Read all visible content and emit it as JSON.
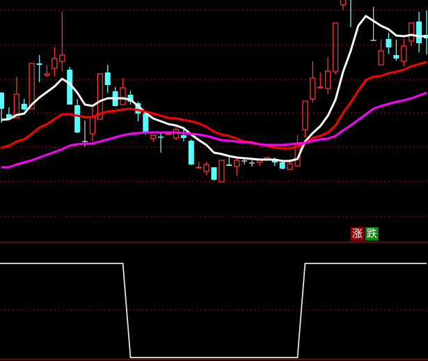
{
  "chart_data": [
    {
      "type": "candlestick",
      "title": "",
      "grid": true,
      "grid_levels": [
        38.5,
        33.6,
        28.6,
        23.8,
        18.9,
        14.0,
        9.0
      ],
      "ylim": [
        9.0,
        40.0
      ],
      "colors": {
        "up": "#ff3232",
        "down": "#54ffff",
        "flat": "#c8c8c8",
        "grid": "#c80000",
        "background": "#000000"
      },
      "candles_ohlc": [
        [
          26.7,
          26.8,
          22.4,
          24.4
        ],
        [
          23.6,
          24.6,
          22.8,
          23.0
        ],
        [
          23.1,
          29.0,
          23.0,
          26.5
        ],
        [
          25.1,
          25.8,
          24.2,
          24.3
        ],
        [
          24.4,
          30.9,
          24.4,
          30.9
        ],
        [
          30.9,
          32.1,
          28.2,
          30.7
        ],
        [
          29.2,
          30.7,
          29.0,
          29.4
        ],
        [
          30.2,
          33.2,
          29.1,
          31.6
        ],
        [
          31.2,
          38.3,
          29.8,
          32.1
        ],
        [
          30.0,
          30.4,
          25.0,
          25.0
        ],
        [
          24.9,
          25.8,
          20.9,
          21.0
        ],
        [
          19.7,
          22.7,
          19.0,
          19.7
        ],
        [
          20.8,
          24.6,
          19.7,
          23.2
        ],
        [
          22.9,
          29.4,
          22.9,
          29.4
        ],
        [
          29.6,
          30.7,
          26.7,
          27.8
        ],
        [
          26.9,
          27.5,
          24.7,
          24.8
        ],
        [
          25.0,
          28.8,
          25.0,
          27.4
        ],
        [
          26.4,
          27.0,
          25.0,
          25.4
        ],
        [
          25.2,
          25.4,
          22.6,
          23.7
        ],
        [
          23.7,
          24.0,
          20.7,
          21.0
        ],
        [
          20.1,
          20.6,
          19.7,
          20.6
        ],
        [
          20.4,
          21.0,
          18.1,
          20.3
        ],
        [
          20.7,
          20.9,
          20.6,
          20.8
        ],
        [
          20.2,
          22.1,
          19.9,
          21.4
        ],
        [
          20.6,
          21.6,
          19.7,
          20.2
        ],
        [
          19.8,
          20.0,
          16.3,
          16.4
        ],
        [
          15.9,
          16.8,
          15.9,
          16.0
        ],
        [
          15.4,
          16.8,
          14.9,
          16.4
        ],
        [
          16.0,
          16.0,
          14.1,
          14.2
        ],
        [
          13.9,
          17.0,
          13.9,
          17.0
        ],
        [
          16.4,
          17.4,
          16.2,
          16.2
        ],
        [
          16.1,
          17.4,
          14.8,
          17.0
        ],
        [
          16.9,
          17.3,
          16.4,
          16.9
        ],
        [
          16.6,
          17.0,
          16.1,
          16.6
        ],
        [
          16.7,
          17.1,
          16.2,
          17.0
        ],
        [
          17.2,
          17.5,
          17.1,
          17.4
        ],
        [
          17.2,
          17.4,
          16.2,
          16.7
        ],
        [
          16.7,
          16.8,
          15.7,
          15.8
        ],
        [
          15.7,
          17.2,
          15.7,
          16.5
        ],
        [
          16.2,
          20.6,
          16.2,
          19.5
        ],
        [
          21.4,
          25.5,
          20.3,
          25.5
        ],
        [
          25.8,
          31.2,
          25.3,
          28.8
        ],
        [
          27.4,
          29.6,
          27.4,
          27.5
        ],
        [
          27.3,
          31.8,
          26.5,
          29.8
        ],
        [
          29.7,
          36.7,
          29.3,
          36.7
        ],
        [
          39.3,
          41.5,
          38.6,
          40.5
        ],
        [
          42.0,
          43.0,
          36.1,
          40.5
        ],
        [
          46.0,
          48.0,
          41.0,
          44.0
        ],
        [
          44.0,
          47.0,
          40.5,
          42.0
        ],
        [
          34.2,
          39.0,
          34.2,
          34.2
        ],
        [
          30.7,
          34.3,
          30.7,
          32.7
        ],
        [
          34.4,
          35.3,
          32.3,
          33.2
        ],
        [
          32.1,
          34.3,
          31.3,
          31.6
        ],
        [
          31.2,
          34.4,
          30.5,
          33.4
        ],
        [
          34.1,
          36.7,
          33.4,
          36.7
        ],
        [
          36.9,
          38.3,
          32.5,
          33.8
        ],
        [
          35.0,
          38.5,
          32.2,
          34.5
        ]
      ],
      "series": [
        {
          "color": "#ffffff",
          "values": [
            22.8,
            22.9,
            23.5,
            23.7,
            25.0,
            26.0,
            26.8,
            27.6,
            28.7,
            28.0,
            26.7,
            25.0,
            24.8,
            25.5,
            25.9,
            25.9,
            25.9,
            25.7,
            24.8,
            23.8,
            23.0,
            22.6,
            22.2,
            22.0,
            21.6,
            20.7,
            19.9,
            19.2,
            18.1,
            17.9,
            17.6,
            17.4,
            17.3,
            17.2,
            17.1,
            17.1,
            17.1,
            16.9,
            16.9,
            17.2,
            19.7,
            20.9,
            21.9,
            23.4,
            25.7,
            29.7,
            32.7,
            36.3,
            37.7,
            37.0,
            36.3,
            35.8,
            34.9,
            34.8,
            35.0,
            34.8,
            34.8
          ]
        },
        {
          "color": "#ff0000",
          "values": [
            18.8,
            19.1,
            19.7,
            20.0,
            20.8,
            21.7,
            22.2,
            22.9,
            23.6,
            23.6,
            23.4,
            23.2,
            23.2,
            23.7,
            24.0,
            24.1,
            24.3,
            24.4,
            24.2,
            24.0,
            23.7,
            23.4,
            23.1,
            23.0,
            22.8,
            22.6,
            22.3,
            21.8,
            21.1,
            20.7,
            20.5,
            20.1,
            19.7,
            19.6,
            19.3,
            19.1,
            18.8,
            18.7,
            18.7,
            19.0,
            19.5,
            20.2,
            20.5,
            21.0,
            22.0,
            23.8,
            25.3,
            27.0,
            28.5,
            29.0,
            29.1,
            29.5,
            29.7,
            30.0,
            30.5,
            30.8,
            31.1
          ]
        },
        {
          "color": "#ff00ff",
          "values": [
            16.0,
            16.0,
            16.4,
            16.7,
            17.0,
            17.4,
            17.8,
            18.2,
            18.6,
            19.1,
            19.3,
            19.4,
            19.4,
            19.7,
            20.0,
            20.3,
            20.6,
            20.8,
            20.9,
            21.0,
            21.0,
            21.0,
            21.0,
            21.0,
            20.9,
            20.8,
            20.7,
            20.5,
            20.2,
            19.9,
            19.8,
            19.7,
            19.6,
            19.5,
            19.3,
            19.2,
            19.2,
            19.2,
            19.3,
            19.4,
            19.5,
            19.8,
            20.0,
            20.1,
            20.5,
            21.3,
            22.0,
            22.8,
            23.6,
            24.4,
            24.8,
            25.1,
            25.4,
            25.6,
            25.9,
            26.3,
            26.7
          ]
        }
      ]
    },
    {
      "type": "line",
      "title": "",
      "ylim": [
        0,
        1
      ],
      "grid_levels": [
        0.5
      ],
      "series": [
        {
          "color": "#e6e6e6",
          "values": [
            1,
            1,
            1,
            1,
            1,
            1,
            1,
            1,
            1,
            1,
            1,
            1,
            1,
            1,
            1,
            1,
            1,
            0,
            0,
            0,
            0,
            0,
            0,
            0,
            0,
            0,
            0,
            0,
            0,
            0,
            0,
            0,
            0,
            0,
            0,
            0,
            0,
            0,
            0,
            0,
            1,
            1,
            1,
            1,
            1,
            1,
            1,
            1,
            1,
            1,
            1,
            1,
            1,
            1,
            1,
            1,
            1
          ]
        }
      ]
    }
  ],
  "legend": {
    "up_label": "涨",
    "down_label": "跌",
    "up_color": "#8b0000",
    "down_color": "#0a8a0a"
  }
}
